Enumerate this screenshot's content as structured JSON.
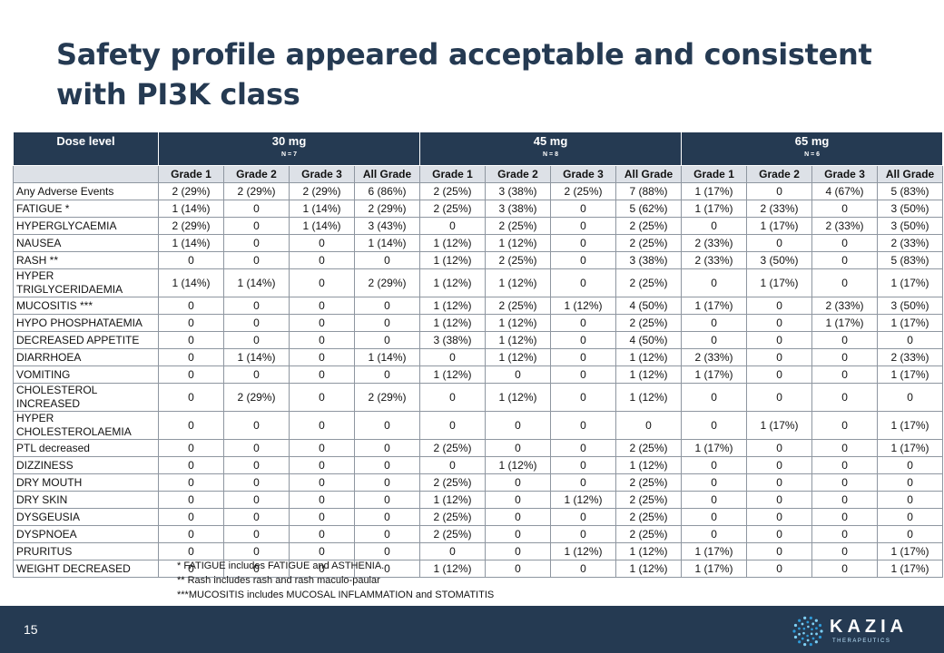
{
  "title": "Safety profile appeared acceptable and consistent with PI3K class",
  "table": {
    "dose_header": "Dose level",
    "doses": [
      {
        "label": "30 mg",
        "n": "N = 7"
      },
      {
        "label": "45 mg",
        "n": "N = 8"
      },
      {
        "label": "65 mg",
        "n": "N = 6"
      }
    ],
    "grades": [
      "Grade 1",
      "Grade 2",
      "Grade 3",
      "All Grade",
      "Grade 1",
      "Grade 2",
      "Grade 3",
      "All Grade",
      "Grade 1",
      "Grade 2",
      "Grade 3",
      "All Grade"
    ],
    "rows": [
      {
        "label": "Any Adverse Events",
        "cells": [
          "2 (29%)",
          "2 (29%)",
          "2 (29%)",
          "6 (86%)",
          "2 (25%)",
          "3 (38%)",
          "2 (25%)",
          "7 (88%)",
          "1 (17%)",
          "0",
          "4 (67%)",
          "5 (83%)"
        ]
      },
      {
        "label": "FATIGUE *",
        "cells": [
          "1 (14%)",
          "0",
          "1 (14%)",
          "2 (29%)",
          "2 (25%)",
          "3 (38%)",
          "0",
          "5 (62%)",
          "1 (17%)",
          "2 (33%)",
          "0",
          "3 (50%)"
        ]
      },
      {
        "label": "HYPERGLYCAEMIA",
        "cells": [
          "2 (29%)",
          "0",
          "1 (14%)",
          "3 (43%)",
          "0",
          "2 (25%)",
          "0",
          "2 (25%)",
          "0",
          "1 (17%)",
          "2 (33%)",
          "3 (50%)"
        ]
      },
      {
        "label": "NAUSEA",
        "cells": [
          "1 (14%)",
          "0",
          "0",
          "1 (14%)",
          "1 (12%)",
          "1 (12%)",
          "0",
          "2 (25%)",
          "2 (33%)",
          "0",
          "0",
          "2 (33%)"
        ]
      },
      {
        "label": "RASH **",
        "cells": [
          "0",
          "0",
          "0",
          "0",
          "1 (12%)",
          "2 (25%)",
          "0",
          "3 (38%)",
          "2 (33%)",
          "3 (50%)",
          "0",
          "5 (83%)"
        ]
      },
      {
        "label": "HYPER TRIGLYCERIDAEMIA",
        "cells": [
          "1 (14%)",
          "1 (14%)",
          "0",
          "2 (29%)",
          "1 (12%)",
          "1 (12%)",
          "0",
          "2 (25%)",
          "0",
          "1 (17%)",
          "0",
          "1 (17%)"
        ]
      },
      {
        "label": "MUCOSITIS ***",
        "cells": [
          "0",
          "0",
          "0",
          "0",
          "1 (12%)",
          "2 (25%)",
          "1 (12%)",
          "4 (50%)",
          "1 (17%)",
          "0",
          "2 (33%)",
          "3 (50%)"
        ]
      },
      {
        "label": "HYPO PHOSPHATAEMIA",
        "cells": [
          "0",
          "0",
          "0",
          "0",
          "1 (12%)",
          "1 (12%)",
          "0",
          "2 (25%)",
          "0",
          "0",
          "1 (17%)",
          "1 (17%)"
        ]
      },
      {
        "label": "DECREASED APPETITE",
        "cells": [
          "0",
          "0",
          "0",
          "0",
          "3 (38%)",
          "1 (12%)",
          "0",
          "4 (50%)",
          "0",
          "0",
          "0",
          "0"
        ]
      },
      {
        "label": "DIARRHOEA",
        "cells": [
          "0",
          "1 (14%)",
          "0",
          "1 (14%)",
          "0",
          "1 (12%)",
          "0",
          "1 (12%)",
          "2 (33%)",
          "0",
          "0",
          "2 (33%)"
        ]
      },
      {
        "label": "VOMITING",
        "cells": [
          "0",
          "0",
          "0",
          "0",
          "1 (12%)",
          "0",
          "0",
          "1 (12%)",
          "1 (17%)",
          "0",
          "0",
          "1 (17%)"
        ]
      },
      {
        "label": "CHOLESTEROL INCREASED",
        "cells": [
          "0",
          "2 (29%)",
          "0",
          "2 (29%)",
          "0",
          "1 (12%)",
          "0",
          "1 (12%)",
          "0",
          "0",
          "0",
          "0"
        ]
      },
      {
        "label": "HYPER CHOLESTEROLAEMIA",
        "cells": [
          "0",
          "0",
          "0",
          "0",
          "0",
          "0",
          "0",
          "0",
          "0",
          "1 (17%)",
          "0",
          "1 (17%)"
        ]
      },
      {
        "label": "PTL decreased",
        "cells": [
          "0",
          "0",
          "0",
          "0",
          "2 (25%)",
          "0",
          "0",
          "2 (25%)",
          "1 (17%)",
          "0",
          "0",
          "1 (17%)"
        ]
      },
      {
        "label": "DIZZINESS",
        "cells": [
          "0",
          "0",
          "0",
          "0",
          "0",
          "1 (12%)",
          "0",
          "1 (12%)",
          "0",
          "0",
          "0",
          "0"
        ]
      },
      {
        "label": "DRY MOUTH",
        "cells": [
          "0",
          "0",
          "0",
          "0",
          "2 (25%)",
          "0",
          "0",
          "2 (25%)",
          "0",
          "0",
          "0",
          "0"
        ]
      },
      {
        "label": "DRY SKIN",
        "cells": [
          "0",
          "0",
          "0",
          "0",
          "1 (12%)",
          "0",
          "1 (12%)",
          "2 (25%)",
          "0",
          "0",
          "0",
          "0"
        ]
      },
      {
        "label": "DYSGEUSIA",
        "cells": [
          "0",
          "0",
          "0",
          "0",
          "2 (25%)",
          "0",
          "0",
          "2 (25%)",
          "0",
          "0",
          "0",
          "0"
        ]
      },
      {
        "label": "DYSPNOEA",
        "cells": [
          "0",
          "0",
          "0",
          "0",
          "2 (25%)",
          "0",
          "0",
          "2 (25%)",
          "0",
          "0",
          "0",
          "0"
        ]
      },
      {
        "label": "PRURITUS",
        "cells": [
          "0",
          "0",
          "0",
          "0",
          "0",
          "0",
          "1 (12%)",
          "1 (12%)",
          "1 (17%)",
          "0",
          "0",
          "1 (17%)"
        ]
      },
      {
        "label": "WEIGHT DECREASED",
        "cells": [
          "0",
          "0",
          "0",
          "0",
          "1 (12%)",
          "0",
          "0",
          "1 (12%)",
          "1 (17%)",
          "0",
          "0",
          "1 (17%)"
        ]
      }
    ]
  },
  "footnotes": [
    "* FATIGUE includes FATIGUE and ASTHENIA.",
    "** Rash includes rash and rash maculo-paular",
    "***MUCOSITIS includes MUCOSAL INFLAMMATION and STOMATITIS"
  ],
  "footer": {
    "page_number": "15",
    "logo_text": "KAZIA",
    "logo_subtext": "THERAPEUTICS",
    "logo_icon": "dotted-circle-logo-icon"
  },
  "colors": {
    "navy": "#253a52",
    "header_gray": "#dde1e7",
    "logo_dot_light": "#7fd0f5",
    "logo_dot_dark": "#2e9ad8"
  }
}
